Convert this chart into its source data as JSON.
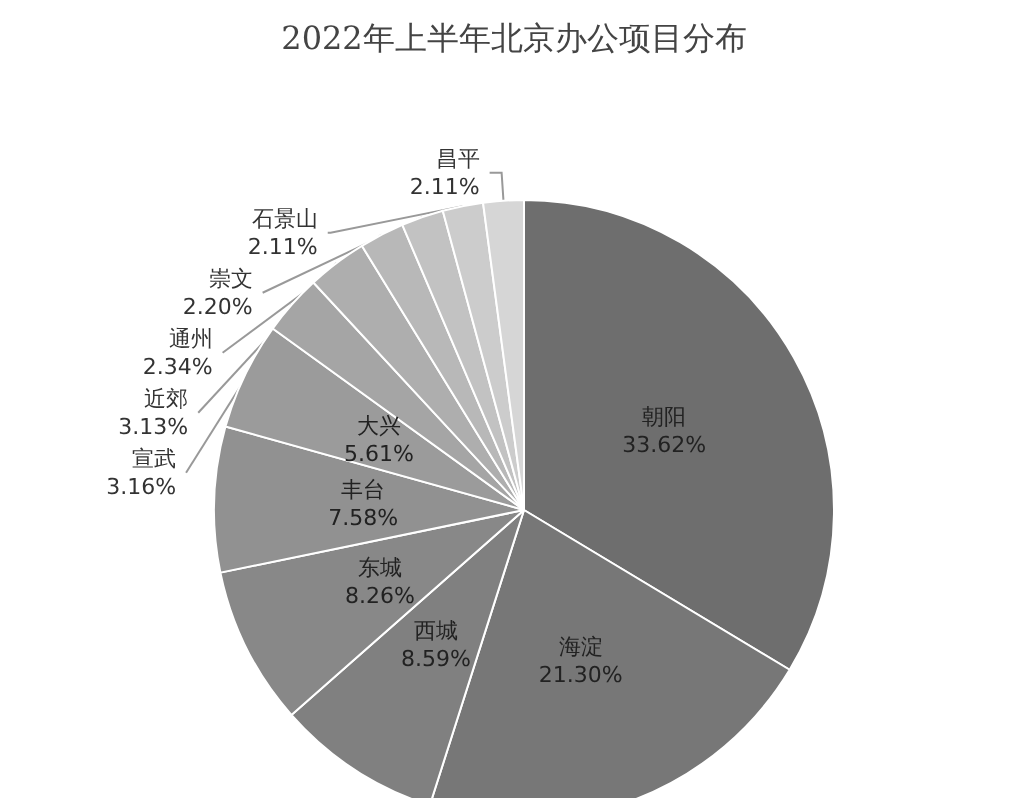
{
  "chart_data": {
    "type": "pie",
    "title": "2022年上半年北京办公项目分布",
    "categories": [
      "朝阳",
      "海淀",
      "西城",
      "东城",
      "丰台",
      "大兴",
      "宣武",
      "近郊",
      "通州",
      "崇文",
      "石景山",
      "昌平"
    ],
    "values": [
      33.62,
      21.3,
      8.59,
      8.26,
      7.58,
      5.61,
      3.16,
      3.13,
      2.34,
      2.2,
      2.11,
      2.11
    ],
    "value_labels": [
      "33.62%",
      "21.30%",
      "8.59%",
      "8.26%",
      "7.58%",
      "5.61%",
      "3.16%",
      "3.13%",
      "2.34%",
      "2.20%",
      "2.11%",
      "2.11%"
    ],
    "colors": [
      "#6e6e6e",
      "#777777",
      "#808080",
      "#888888",
      "#919191",
      "#9b9b9b",
      "#a5a5a5",
      "#aeaeae",
      "#b8b8b8",
      "#c2c2c2",
      "#cccccc",
      "#d6d6d6"
    ],
    "legend": false
  }
}
